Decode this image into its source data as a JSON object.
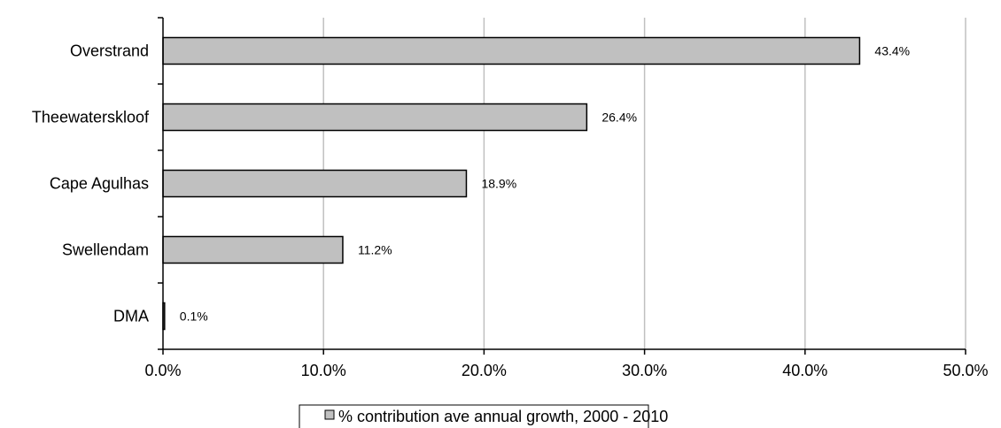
{
  "chart_data": {
    "type": "bar",
    "orientation": "horizontal",
    "categories": [
      "Overstrand",
      "Theewaterskloof",
      "Cape Agulhas",
      "Swellendam",
      "DMA"
    ],
    "series": [
      {
        "name": "% contribution ave annual growth, 2000 - 2010",
        "values": [
          43.4,
          26.4,
          18.9,
          11.2,
          0.1
        ],
        "labels": [
          "43.4%",
          "26.4%",
          "18.9%",
          "11.2%",
          "0.1%"
        ]
      }
    ],
    "x_ticks": [
      0,
      10,
      20,
      30,
      40,
      50
    ],
    "x_tick_labels": [
      "0.0%",
      "10.0%",
      "20.0%",
      "30.0%",
      "40.0%",
      "50.0%"
    ],
    "xlim": [
      0,
      50
    ],
    "grid": "vertical",
    "legend_position": "bottom",
    "colors": {
      "bar_fill": "#c0c0c0",
      "bar_stroke": "#000000",
      "grid": "#c0c0c0",
      "axis": "#000000"
    }
  }
}
